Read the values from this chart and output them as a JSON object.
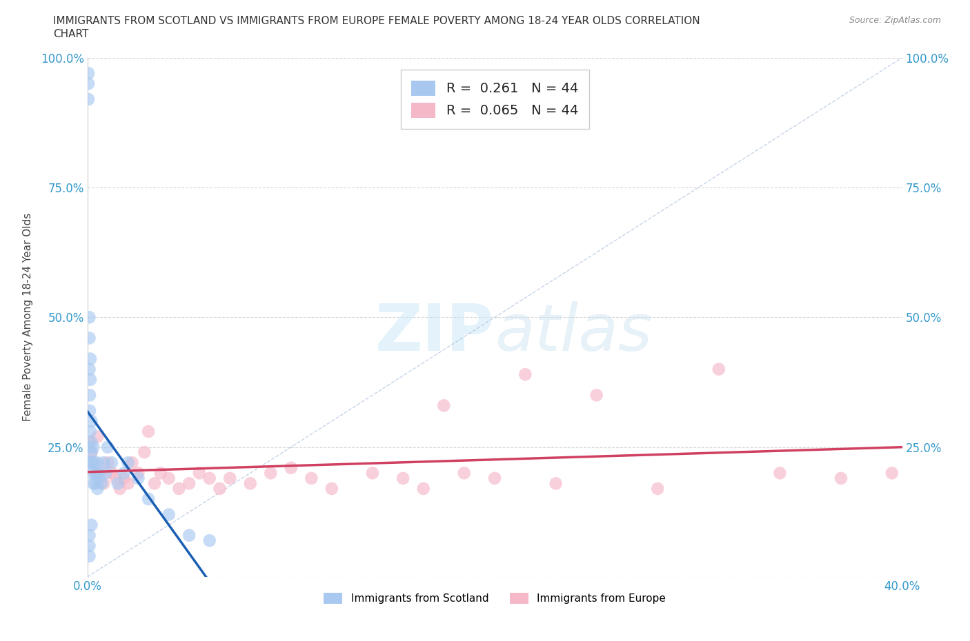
{
  "title_line1": "IMMIGRANTS FROM SCOTLAND VS IMMIGRANTS FROM EUROPE FEMALE POVERTY AMONG 18-24 YEAR OLDS CORRELATION",
  "title_line2": "CHART",
  "source": "Source: ZipAtlas.com",
  "xlabel_bottom": "Immigrants from Scotland",
  "xlabel_bottom2": "Immigrants from Europe",
  "ylabel": "Female Poverty Among 18-24 Year Olds",
  "xlim": [
    0.0,
    0.4
  ],
  "ylim": [
    0.0,
    1.0
  ],
  "R_scotland": 0.261,
  "R_europe": 0.065,
  "N_scotland": 44,
  "N_europe": 44,
  "color_scotland": "#a8c8f0",
  "color_europe": "#f5b8c8",
  "trendline_scotland": "#1a5fb4",
  "trendline_europe": "#d04060",
  "scotland_x": [
    0.0005,
    0.0005,
    0.0005,
    0.0008,
    0.0008,
    0.001,
    0.001,
    0.001,
    0.0012,
    0.0012,
    0.0015,
    0.0015,
    0.0015,
    0.002,
    0.002,
    0.002,
    0.002,
    0.0025,
    0.003,
    0.003,
    0.003,
    0.004,
    0.004,
    0.005,
    0.005,
    0.005,
    0.006,
    0.007,
    0.008,
    0.009,
    0.01,
    0.012,
    0.015,
    0.018,
    0.02,
    0.025,
    0.03,
    0.04,
    0.05,
    0.06,
    0.001,
    0.001,
    0.001,
    0.002
  ],
  "scotland_y": [
    0.97,
    0.95,
    0.92,
    0.25,
    0.22,
    0.5,
    0.46,
    0.4,
    0.35,
    0.32,
    0.42,
    0.38,
    0.28,
    0.3,
    0.26,
    0.24,
    0.22,
    0.2,
    0.25,
    0.22,
    0.18,
    0.2,
    0.18,
    0.22,
    0.2,
    0.17,
    0.19,
    0.18,
    0.22,
    0.2,
    0.25,
    0.22,
    0.18,
    0.2,
    0.22,
    0.19,
    0.15,
    0.12,
    0.08,
    0.07,
    0.08,
    0.06,
    0.04,
    0.1
  ],
  "europe_x": [
    0.001,
    0.002,
    0.003,
    0.005,
    0.006,
    0.008,
    0.01,
    0.012,
    0.014,
    0.016,
    0.018,
    0.02,
    0.022,
    0.025,
    0.028,
    0.03,
    0.033,
    0.036,
    0.04,
    0.045,
    0.05,
    0.055,
    0.06,
    0.065,
    0.07,
    0.08,
    0.09,
    0.1,
    0.11,
    0.12,
    0.14,
    0.155,
    0.165,
    0.175,
    0.185,
    0.2,
    0.215,
    0.23,
    0.25,
    0.28,
    0.31,
    0.34,
    0.37,
    0.395
  ],
  "europe_y": [
    0.26,
    0.24,
    0.22,
    0.27,
    0.2,
    0.18,
    0.22,
    0.2,
    0.19,
    0.17,
    0.19,
    0.18,
    0.22,
    0.2,
    0.24,
    0.28,
    0.18,
    0.2,
    0.19,
    0.17,
    0.18,
    0.2,
    0.19,
    0.17,
    0.19,
    0.18,
    0.2,
    0.21,
    0.19,
    0.17,
    0.2,
    0.19,
    0.17,
    0.33,
    0.2,
    0.19,
    0.39,
    0.18,
    0.35,
    0.17,
    0.4,
    0.2,
    0.19,
    0.2
  ],
  "ref_line_x": [
    0.0,
    0.4
  ],
  "ref_line_y": [
    0.0,
    1.0
  ],
  "ytick_right_labels": [
    "",
    "25.0%",
    "50.0%",
    "75.0%",
    "100.0%"
  ],
  "ytick_left_labels": [
    "",
    "25.0%",
    "50.0%",
    "75.0%",
    "100.0%"
  ]
}
